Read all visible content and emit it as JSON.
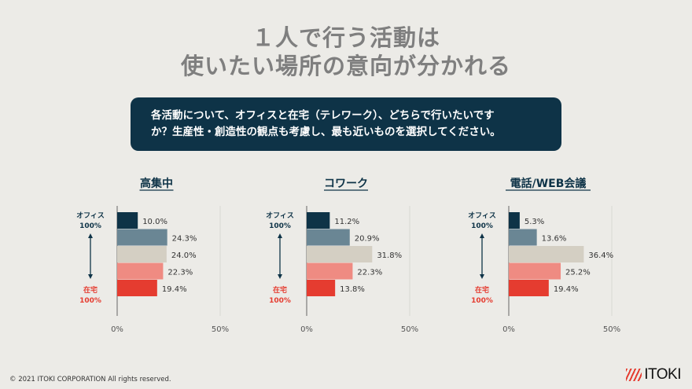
{
  "title": [
    "１人で行う活動は",
    "使いたい場所の意向が分かれる"
  ],
  "question": [
    "各活動について、オフィスと在宅（テレワーク）、どちらで行いたいです",
    "か？生産性・創造性の観点も考慮し、最も近いものを選択してください。"
  ],
  "colors": [
    "#0e3347",
    "#6a8694",
    "#d4cfc3",
    "#ef8b82",
    "#e53c30"
  ],
  "scale_labels": {
    "top": [
      "オフィス",
      "100%"
    ],
    "bottom": [
      "在宅",
      "100%"
    ],
    "top_color": "#0e3347",
    "bottom_color": "#e53c30"
  },
  "chart_data": [
    {
      "type": "bar",
      "orientation": "horizontal",
      "title": "高集中",
      "values": [
        10.0,
        24.3,
        24.0,
        22.3,
        19.4
      ],
      "xlim": [
        0,
        50
      ],
      "xticks": [
        "0%",
        "50%"
      ]
    },
    {
      "type": "bar",
      "orientation": "horizontal",
      "title": "コワーク",
      "values": [
        11.2,
        20.9,
        31.8,
        22.3,
        13.8
      ],
      "xlim": [
        0,
        50
      ],
      "xticks": [
        "0%",
        "50%"
      ]
    },
    {
      "type": "bar",
      "orientation": "horizontal",
      "title": "電話/WEB会議",
      "values": [
        5.3,
        13.6,
        36.4,
        25.2,
        19.4
      ],
      "xlim": [
        0,
        50
      ],
      "xticks": [
        "0%",
        "50%"
      ]
    }
  ],
  "footer": "© 2021  ITOKI CORPORATION  All rights reserved.",
  "logo": "ITOKI"
}
